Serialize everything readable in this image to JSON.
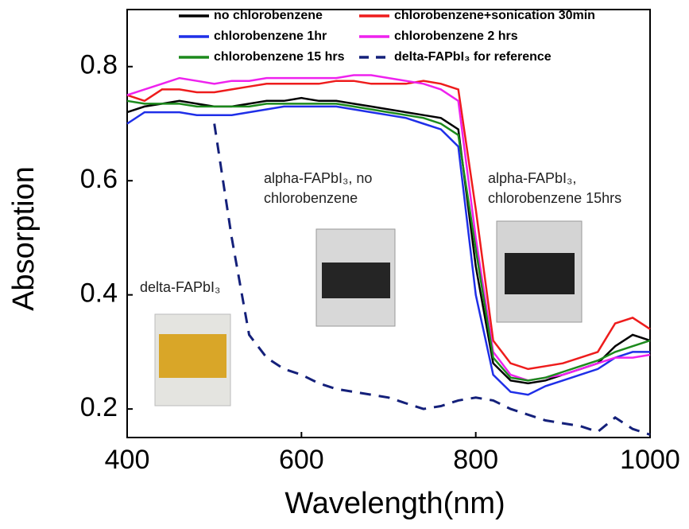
{
  "chart_data": {
    "type": "line",
    "xlabel": "Wavelength(nm)",
    "ylabel": "Absorption",
    "xlim": [
      400,
      1000
    ],
    "xticks": [
      400,
      600,
      800,
      1000
    ],
    "ylim": [
      0.15,
      0.9
    ],
    "yticks": [
      0.2,
      0.4,
      0.6,
      0.8
    ],
    "x": [
      400,
      420,
      440,
      460,
      480,
      500,
      520,
      540,
      560,
      580,
      600,
      620,
      640,
      660,
      680,
      700,
      720,
      740,
      760,
      780,
      800,
      820,
      840,
      860,
      880,
      900,
      920,
      940,
      960,
      980,
      1000
    ],
    "series": [
      {
        "name": "no chlorobenzene",
        "color": "#000000",
        "dashed": false,
        "values": [
          0.72,
          0.73,
          0.735,
          0.74,
          0.735,
          0.73,
          0.73,
          0.735,
          0.74,
          0.74,
          0.745,
          0.74,
          0.74,
          0.735,
          0.73,
          0.725,
          0.72,
          0.715,
          0.71,
          0.69,
          0.45,
          0.28,
          0.25,
          0.245,
          0.25,
          0.26,
          0.27,
          0.28,
          0.31,
          0.33,
          0.32
        ]
      },
      {
        "name": "chlorobenzene+sonication 30min",
        "color": "#ee1c1c",
        "dashed": false,
        "values": [
          0.75,
          0.74,
          0.76,
          0.76,
          0.755,
          0.755,
          0.76,
          0.765,
          0.77,
          0.77,
          0.77,
          0.77,
          0.775,
          0.775,
          0.77,
          0.77,
          0.77,
          0.775,
          0.77,
          0.76,
          0.55,
          0.32,
          0.28,
          0.27,
          0.275,
          0.28,
          0.29,
          0.3,
          0.35,
          0.36,
          0.34
        ]
      },
      {
        "name": "chlorobenzene 1hr",
        "color": "#1f2fe8",
        "dashed": false,
        "values": [
          0.7,
          0.72,
          0.72,
          0.72,
          0.715,
          0.715,
          0.715,
          0.72,
          0.725,
          0.73,
          0.73,
          0.73,
          0.73,
          0.725,
          0.72,
          0.715,
          0.71,
          0.7,
          0.69,
          0.66,
          0.4,
          0.26,
          0.23,
          0.225,
          0.24,
          0.25,
          0.26,
          0.27,
          0.29,
          0.3,
          0.3
        ]
      },
      {
        "name": "chlorobenzene 2 hrs",
        "color": "#ee22ee",
        "dashed": false,
        "values": [
          0.75,
          0.76,
          0.77,
          0.78,
          0.775,
          0.77,
          0.775,
          0.775,
          0.78,
          0.78,
          0.78,
          0.78,
          0.78,
          0.785,
          0.785,
          0.78,
          0.775,
          0.77,
          0.76,
          0.74,
          0.5,
          0.3,
          0.26,
          0.25,
          0.255,
          0.26,
          0.27,
          0.28,
          0.29,
          0.29,
          0.295
        ]
      },
      {
        "name": "chlorobenzene 15 hrs",
        "color": "#1c8a1c",
        "dashed": false,
        "values": [
          0.74,
          0.735,
          0.735,
          0.735,
          0.73,
          0.73,
          0.73,
          0.73,
          0.735,
          0.735,
          0.735,
          0.735,
          0.735,
          0.73,
          0.725,
          0.72,
          0.715,
          0.71,
          0.7,
          0.68,
          0.48,
          0.29,
          0.255,
          0.25,
          0.255,
          0.265,
          0.275,
          0.285,
          0.3,
          0.31,
          0.32
        ]
      },
      {
        "name": "delta-FAPbI₃ for reference",
        "color": "#14207a",
        "dashed": true,
        "values": [
          null,
          null,
          null,
          null,
          null,
          0.7,
          0.5,
          0.33,
          0.29,
          0.27,
          0.26,
          0.245,
          0.235,
          0.23,
          0.225,
          0.22,
          0.21,
          0.2,
          0.205,
          0.215,
          0.22,
          0.215,
          0.2,
          0.19,
          0.18,
          0.175,
          0.17,
          0.16,
          0.185,
          0.165,
          0.155
        ]
      }
    ],
    "annotations": [
      {
        "lines": [
          "delta-FAPbI₃"
        ]
      },
      {
        "lines": [
          "alpha-FAPbI₃, no",
          "chlorobenzene"
        ]
      },
      {
        "lines": [
          "alpha-FAPbI₃,",
          "chlorobenzene 15hrs"
        ]
      }
    ]
  }
}
